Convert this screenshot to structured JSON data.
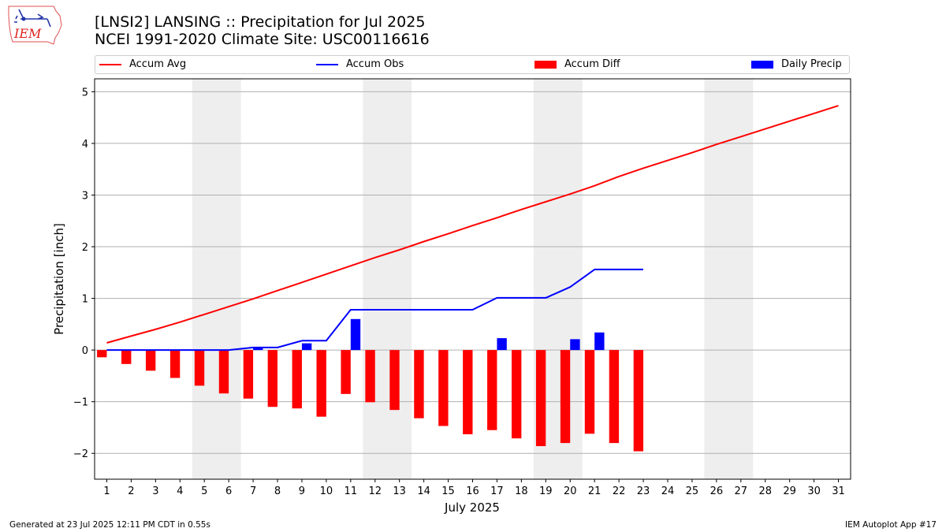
{
  "header": {
    "title_line1": "[LNSI2] LANSING :: Precipitation for Jul 2025",
    "title_line2": "NCEI 1991-2020 Climate Site: USC00116616"
  },
  "logo": {
    "text": "IEM",
    "icon": "iem-iowa-logo"
  },
  "footer": {
    "left": "Generated at 23 Jul 2025 12:11 PM CDT in 0.55s",
    "right": "IEM Autoplot App #17"
  },
  "colors": {
    "avg": "#ff0000",
    "obs": "#0000ff",
    "diff": "#ff0000",
    "daily": "#0000ff",
    "weekend_shade": "#eeeeee",
    "grid": "#b0b0b0"
  },
  "chart_data": {
    "type": "bar",
    "xlabel": "July 2025",
    "ylabel": "Precipitation [inch]",
    "xlim": [
      0.5,
      31.5
    ],
    "ylim": [
      -2.5,
      5.25
    ],
    "yticks": [
      -2,
      -1,
      0,
      1,
      2,
      3,
      4,
      5
    ],
    "grid": true,
    "legend_position": "top",
    "weekend_spans": [
      [
        5,
        6
      ],
      [
        12,
        13
      ],
      [
        19,
        20
      ],
      [
        26,
        27
      ]
    ],
    "days": [
      1,
      2,
      3,
      4,
      5,
      6,
      7,
      8,
      9,
      10,
      11,
      12,
      13,
      14,
      15,
      16,
      17,
      18,
      19,
      20,
      21,
      22,
      23,
      24,
      25,
      26,
      27,
      28,
      29,
      30,
      31
    ],
    "series": [
      {
        "name": "Accum Avg",
        "kind": "line",
        "color": "#ff0000",
        "x": [
          1,
          2,
          3,
          4,
          5,
          6,
          7,
          8,
          9,
          10,
          11,
          12,
          13,
          14,
          15,
          16,
          17,
          18,
          19,
          20,
          21,
          22,
          23,
          24,
          25,
          26,
          27,
          28,
          29,
          30,
          31
        ],
        "values": [
          0.14,
          0.27,
          0.4,
          0.54,
          0.69,
          0.84,
          0.99,
          1.15,
          1.31,
          1.47,
          1.63,
          1.79,
          1.94,
          2.1,
          2.25,
          2.41,
          2.56,
          2.72,
          2.87,
          3.02,
          3.18,
          3.36,
          3.52,
          3.67,
          3.82,
          3.98,
          4.13,
          4.28,
          4.43,
          4.58,
          4.73
        ]
      },
      {
        "name": "Accum Obs",
        "kind": "line",
        "color": "#0000ff",
        "x": [
          1,
          2,
          3,
          4,
          5,
          6,
          7,
          8,
          9,
          10,
          11,
          12,
          13,
          14,
          15,
          16,
          17,
          18,
          19,
          20,
          21,
          22,
          23
        ],
        "values": [
          0,
          0,
          0,
          0,
          0,
          0,
          0.05,
          0.05,
          0.18,
          0.18,
          0.78,
          0.78,
          0.78,
          0.78,
          0.78,
          0.78,
          1.01,
          1.01,
          1.01,
          1.22,
          1.56,
          1.56,
          1.56
        ]
      },
      {
        "name": "Accum Diff",
        "kind": "bar",
        "color": "#ff0000",
        "x": [
          1,
          2,
          3,
          4,
          5,
          6,
          7,
          8,
          9,
          10,
          11,
          12,
          13,
          14,
          15,
          16,
          17,
          18,
          19,
          20,
          21,
          22,
          23
        ],
        "values": [
          -0.14,
          -0.27,
          -0.4,
          -0.54,
          -0.69,
          -0.84,
          -0.94,
          -1.1,
          -1.13,
          -1.29,
          -0.85,
          -1.01,
          -1.16,
          -1.32,
          -1.47,
          -1.63,
          -1.55,
          -1.71,
          -1.86,
          -1.8,
          -1.62,
          -1.8,
          -1.96
        ]
      },
      {
        "name": "Daily Precip",
        "kind": "bar",
        "color": "#0000ff",
        "x": [
          1,
          2,
          3,
          4,
          5,
          6,
          7,
          8,
          9,
          10,
          11,
          12,
          13,
          14,
          15,
          16,
          17,
          18,
          19,
          20,
          21,
          22,
          23
        ],
        "values": [
          0,
          0,
          0,
          0,
          0,
          0,
          0.05,
          0,
          0.13,
          0,
          0.6,
          0,
          0,
          0,
          0,
          0,
          0.23,
          0,
          0,
          0.21,
          0.34,
          0,
          0
        ]
      }
    ]
  }
}
